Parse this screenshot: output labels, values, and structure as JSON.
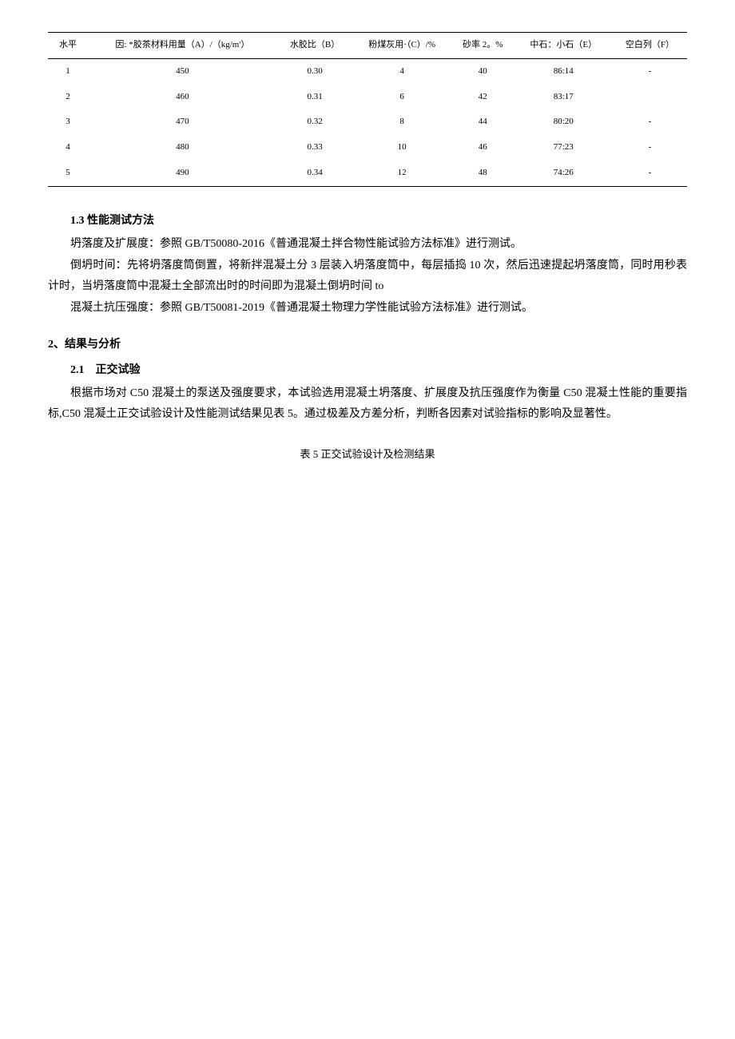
{
  "table4": {
    "headers": {
      "level": "水平",
      "factorLabel": "因:",
      "colA": "*胶茶材料用量（A）/（kg/m'）",
      "colB": "水胶比（B）",
      "colC": "粉煤灰用·（C）/%",
      "colD": "砂率 2。%",
      "colE": "中石：小石（E）",
      "colF": "空白列（F）"
    },
    "rows": [
      {
        "level": "1",
        "a": "450",
        "b": "0.30",
        "c": "4",
        "d": "40",
        "e": "86:14",
        "f": "-"
      },
      {
        "level": "2",
        "a": "460",
        "b": "0.31",
        "c": "6",
        "d": "42",
        "e": "83:17",
        "f": ""
      },
      {
        "level": "3",
        "a": "470",
        "b": "0.32",
        "c": "8",
        "d": "44",
        "e": "80:20",
        "f": "-"
      },
      {
        "level": "4",
        "a": "480",
        "b": "0.33",
        "c": "10",
        "d": "46",
        "e": "77:23",
        "f": "-"
      },
      {
        "level": "5",
        "a": "490",
        "b": "0.34",
        "c": "12",
        "d": "48",
        "e": "74:26",
        "f": "-"
      }
    ]
  },
  "section1_3": {
    "heading": "1.3 性能测试方法",
    "p1": "坍落度及扩展度：参照 GB/T50080-2016《普通混凝土拌合物性能试验方法标准》进行测试。",
    "p2": "倒坍时间：先将坍落度筒倒置，将新拌混凝土分 3 层装入坍落度筒中，每层插捣 10 次，然后迅速提起坍落度筒，同时用秒表计时，当坍落度筒中混凝土全部流出时的时间即为混凝土倒坍时间 to",
    "p3": "混凝土抗压强度：参照 GB/T50081-2019《普通混凝土物理力学性能试验方法标准》进行测试。"
  },
  "section2": {
    "heading": "2、结果与分析",
    "sub2_1": {
      "heading": "2.1　正交试验",
      "p1": "根据市场对 C50 混凝土的泵送及强度要求，本试验选用混凝土坍落度、扩展度及抗压强度作为衡量 C50 混凝土性能的重要指标,C50 混凝土正交试验设计及性能测试结果见表 5。通过极差及方差分析，判断各因素对试验指标的影响及显著性。"
    }
  },
  "table5Caption": "表 5 正交试验设计及检测结果"
}
